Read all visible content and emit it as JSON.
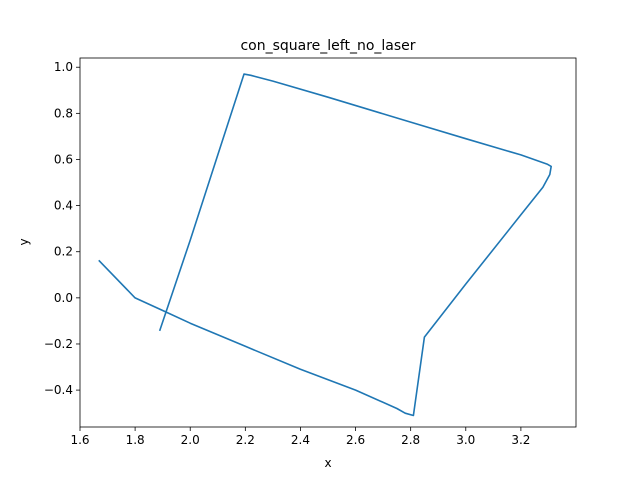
{
  "chart_data": {
    "type": "line",
    "title": "con_square_left_no_laser",
    "xlabel": "x",
    "ylabel": "y",
    "xlim": [
      1.6,
      3.4
    ],
    "ylim": [
      -0.56,
      1.04
    ],
    "xticks": [
      1.6,
      1.8,
      2.0,
      2.2,
      2.4,
      2.6,
      2.8,
      3.0,
      3.2
    ],
    "xtick_labels": [
      "1.6",
      "1.8",
      "2.0",
      "2.2",
      "2.4",
      "2.6",
      "2.8",
      "3.0",
      "3.2"
    ],
    "yticks": [
      -0.4,
      -0.2,
      0.0,
      0.2,
      0.4,
      0.6,
      0.8,
      1.0
    ],
    "ytick_labels": [
      "−0.4",
      "−0.2",
      "0.0",
      "0.2",
      "0.4",
      "0.6",
      "0.8",
      "1.0"
    ],
    "grid": false,
    "series": [
      {
        "color": "#1f77b4",
        "x": [
          1.89,
          2.0,
          2.1,
          2.195,
          2.22,
          2.3,
          2.5,
          2.75,
          3.0,
          3.2,
          3.295,
          3.31,
          3.305,
          3.28,
          3.2,
          3.0,
          2.85,
          2.81,
          2.78,
          2.75,
          2.6,
          2.4,
          2.2,
          2.0,
          1.9,
          1.8,
          1.67
        ],
        "y": [
          -0.14,
          0.25,
          0.62,
          0.97,
          0.965,
          0.94,
          0.87,
          0.78,
          0.69,
          0.62,
          0.58,
          0.57,
          0.535,
          0.48,
          0.36,
          0.06,
          -0.17,
          -0.51,
          -0.5,
          -0.48,
          -0.4,
          -0.31,
          -0.21,
          -0.11,
          -0.055,
          0.0,
          0.16
        ]
      }
    ]
  }
}
